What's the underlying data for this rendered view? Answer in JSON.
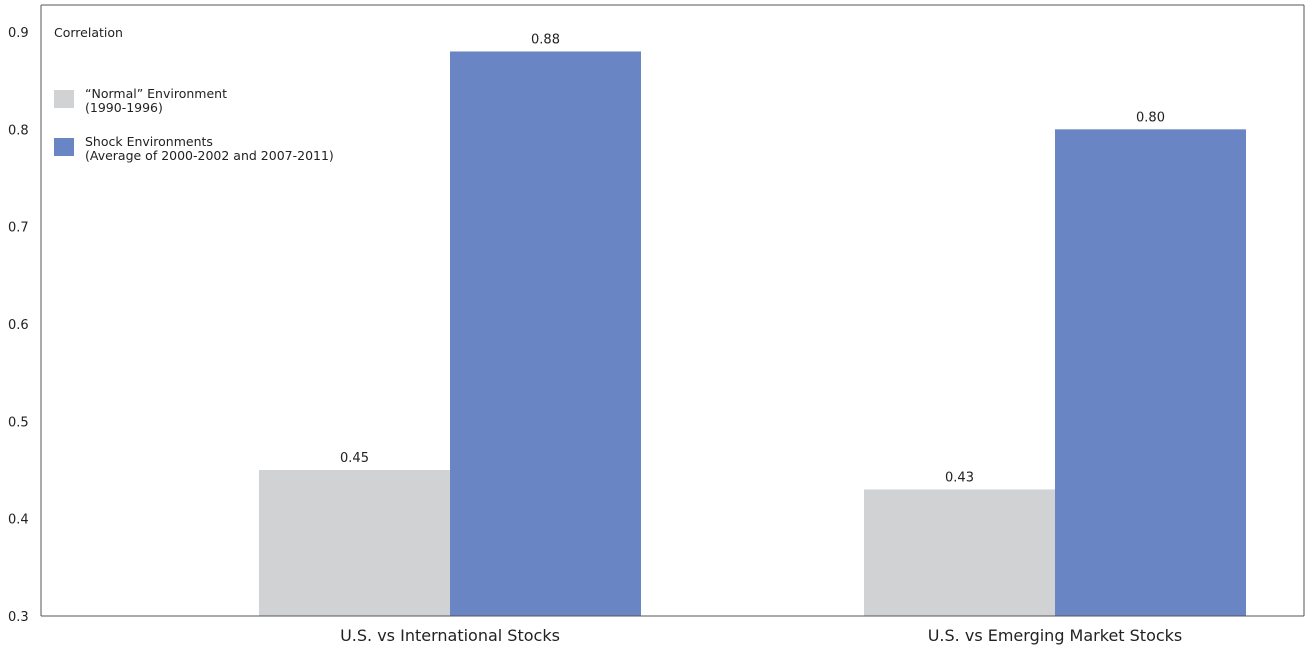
{
  "chart_data": {
    "type": "bar",
    "title": "",
    "xlabel": "",
    "ylabel": "Correlation",
    "ylim": [
      0.3,
      0.9
    ],
    "yticks": [
      "0.3",
      "0.4",
      "0.5",
      "0.6",
      "0.7",
      "0.8",
      "0.9"
    ],
    "grid": false,
    "legend_position": "top-left",
    "categories": [
      "U.S. vs International Stocks",
      "U.S. vs Emerging Market Stocks"
    ],
    "series": [
      {
        "name": "“Normal” Environment",
        "name_line2": "(1990-1996)",
        "color": "#d1d2d4",
        "values": [
          0.45,
          0.43
        ],
        "labels": [
          "0.45",
          "0.43"
        ]
      },
      {
        "name": "Shock Environments",
        "name_line2": "(Average of 2000-2002 and 2007-2011)",
        "color": "#6985c3",
        "values": [
          0.88,
          0.8
        ],
        "labels": [
          "0.88",
          "0.80"
        ]
      }
    ]
  }
}
